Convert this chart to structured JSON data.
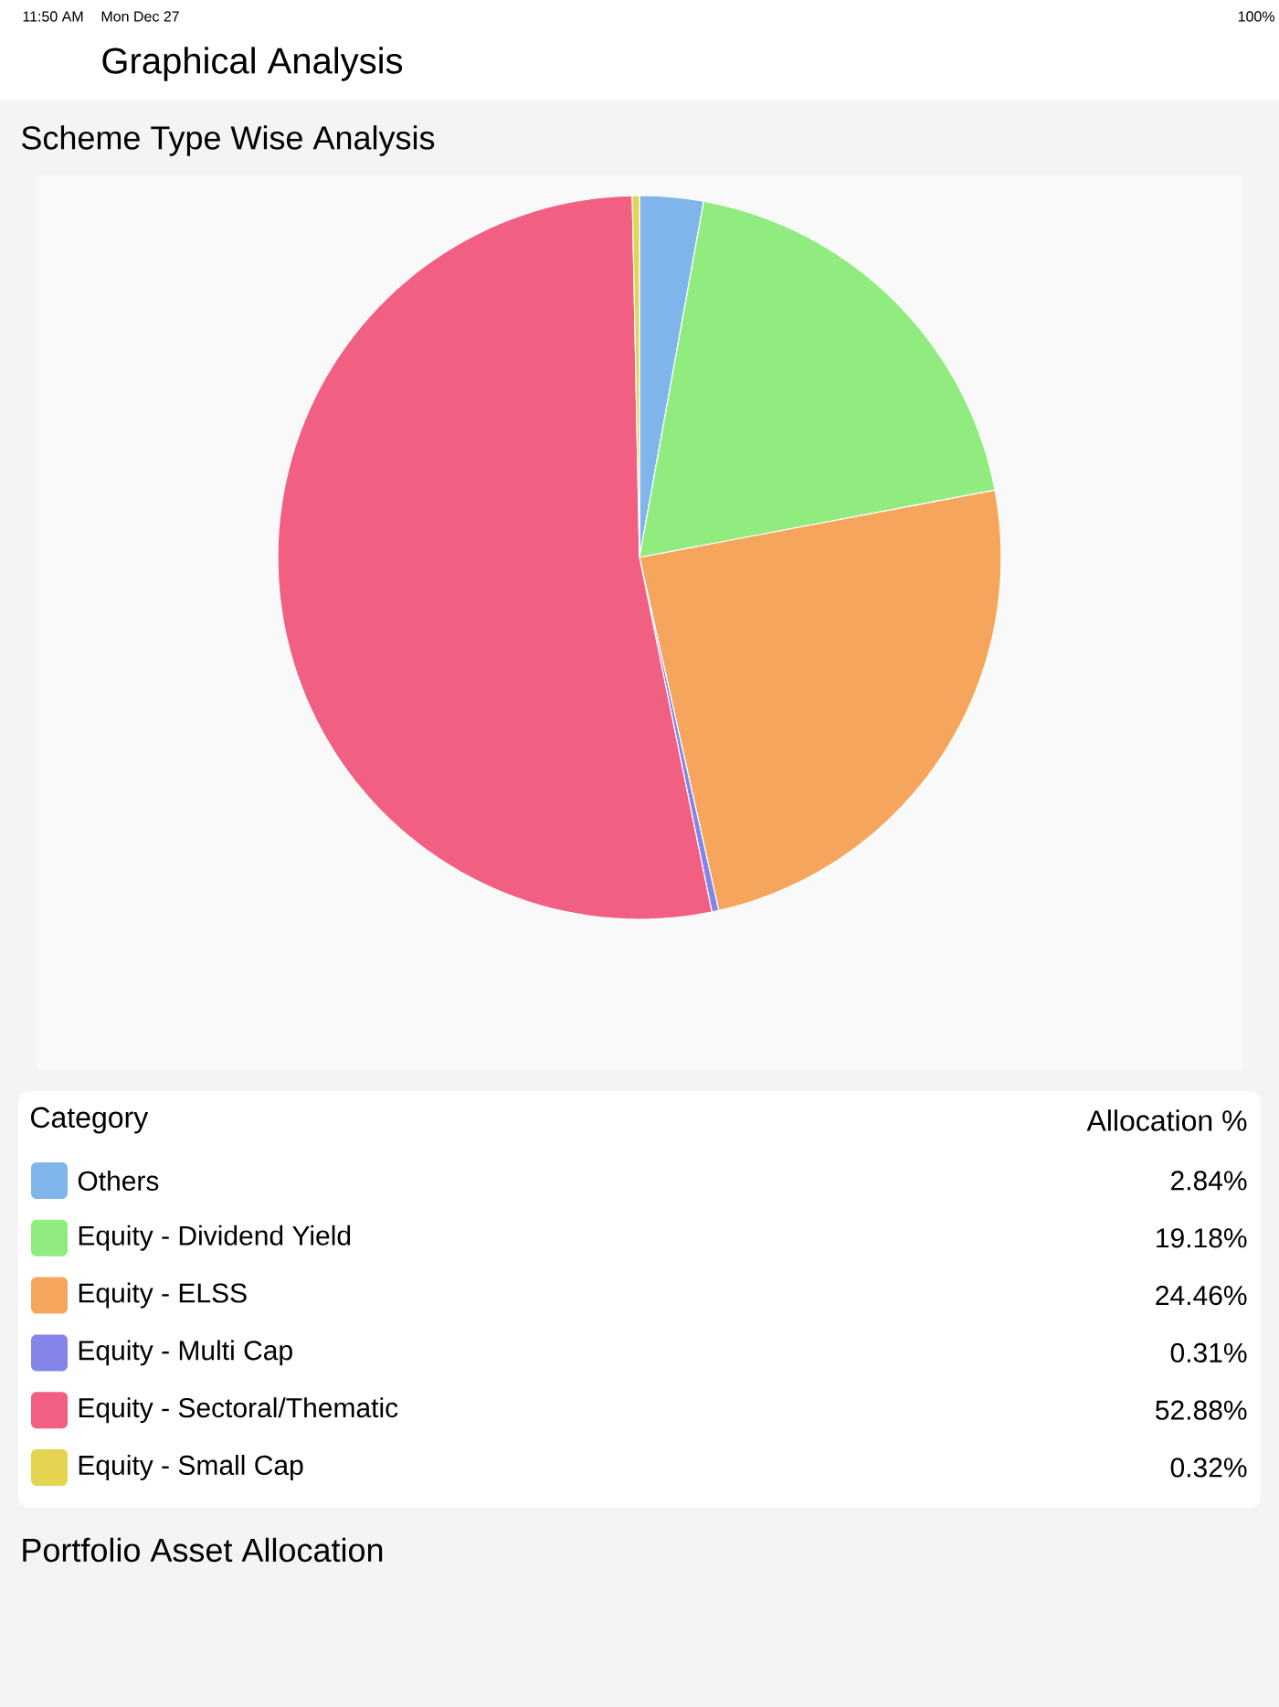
{
  "chart_data": {
    "type": "pie",
    "title": "Scheme Type Wise Analysis",
    "categories": [
      "Others",
      "Equity - Dividend Yield",
      "Equity - ELSS",
      "Equity - Multi Cap",
      "Equity - Sectoral/Thematic",
      "Equity - Small Cap"
    ],
    "values": [
      2.84,
      19.18,
      24.46,
      0.31,
      52.88,
      0.32
    ],
    "value_labels": [
      "2.84%",
      "19.18%",
      "24.46%",
      "0.31%",
      "52.88%",
      "0.32%"
    ],
    "colors": [
      "#7fb5ea",
      "#90ec7f",
      "#f6a55d",
      "#8584e9",
      "#f15f82",
      "#e4d452"
    ],
    "legend_title": "Category",
    "legend": "bottom",
    "annotations": [
      "11:50 AM",
      "Mon Dec 27",
      "100%",
      "Graphical Analysis",
      "Allocation %",
      "Portfolio Asset Allocation"
    ]
  }
}
